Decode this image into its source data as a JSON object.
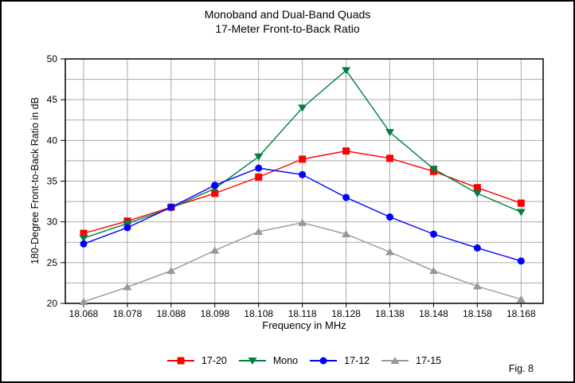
{
  "fig_label": "Fig. 8",
  "chart_data": {
    "type": "line",
    "title": "Monoband and Dual-Band Quads",
    "subtitle": "17-Meter Front-to-Back Ratio",
    "xlabel": "Frequency in MHz",
    "ylabel": "180-Degree Front-to-Back Ratio in dB",
    "x": [
      18.068,
      18.078,
      18.088,
      18.098,
      18.108,
      18.118,
      18.128,
      18.138,
      18.148,
      18.158,
      18.168
    ],
    "x_tick_labels": [
      "18.068",
      "18.078",
      "18.088",
      "18.098",
      "18.108",
      "18.118",
      "18.128",
      "18.138",
      "18.148",
      "18.158",
      "18.168"
    ],
    "ylim": [
      20,
      50
    ],
    "y_major_step": 5,
    "y_minor_step": 2.5,
    "grid": true,
    "grid_color": "#A9A9A9",
    "legend_position": "bottom",
    "series": [
      {
        "name": "17-20",
        "color": "#FF0000",
        "marker": "square",
        "values": [
          28.6,
          30.1,
          31.8,
          33.5,
          35.5,
          37.7,
          38.7,
          37.8,
          36.2,
          34.2,
          32.3
        ]
      },
      {
        "name": "Mono",
        "color": "#008040",
        "marker": "triangle-down",
        "values": [
          28.0,
          29.8,
          31.7,
          34.1,
          38.0,
          44.0,
          48.6,
          41.0,
          36.5,
          33.5,
          31.2
        ]
      },
      {
        "name": "17-12",
        "color": "#0000FF",
        "marker": "circle",
        "values": [
          27.3,
          29.3,
          31.8,
          34.5,
          36.6,
          35.8,
          33.0,
          30.6,
          28.5,
          26.8,
          25.2
        ]
      },
      {
        "name": "17-15",
        "color": "#989898",
        "marker": "triangle-up",
        "values": [
          20.2,
          22.0,
          24.0,
          26.5,
          28.8,
          29.9,
          28.5,
          26.3,
          24.0,
          22.1,
          20.5
        ]
      }
    ]
  }
}
